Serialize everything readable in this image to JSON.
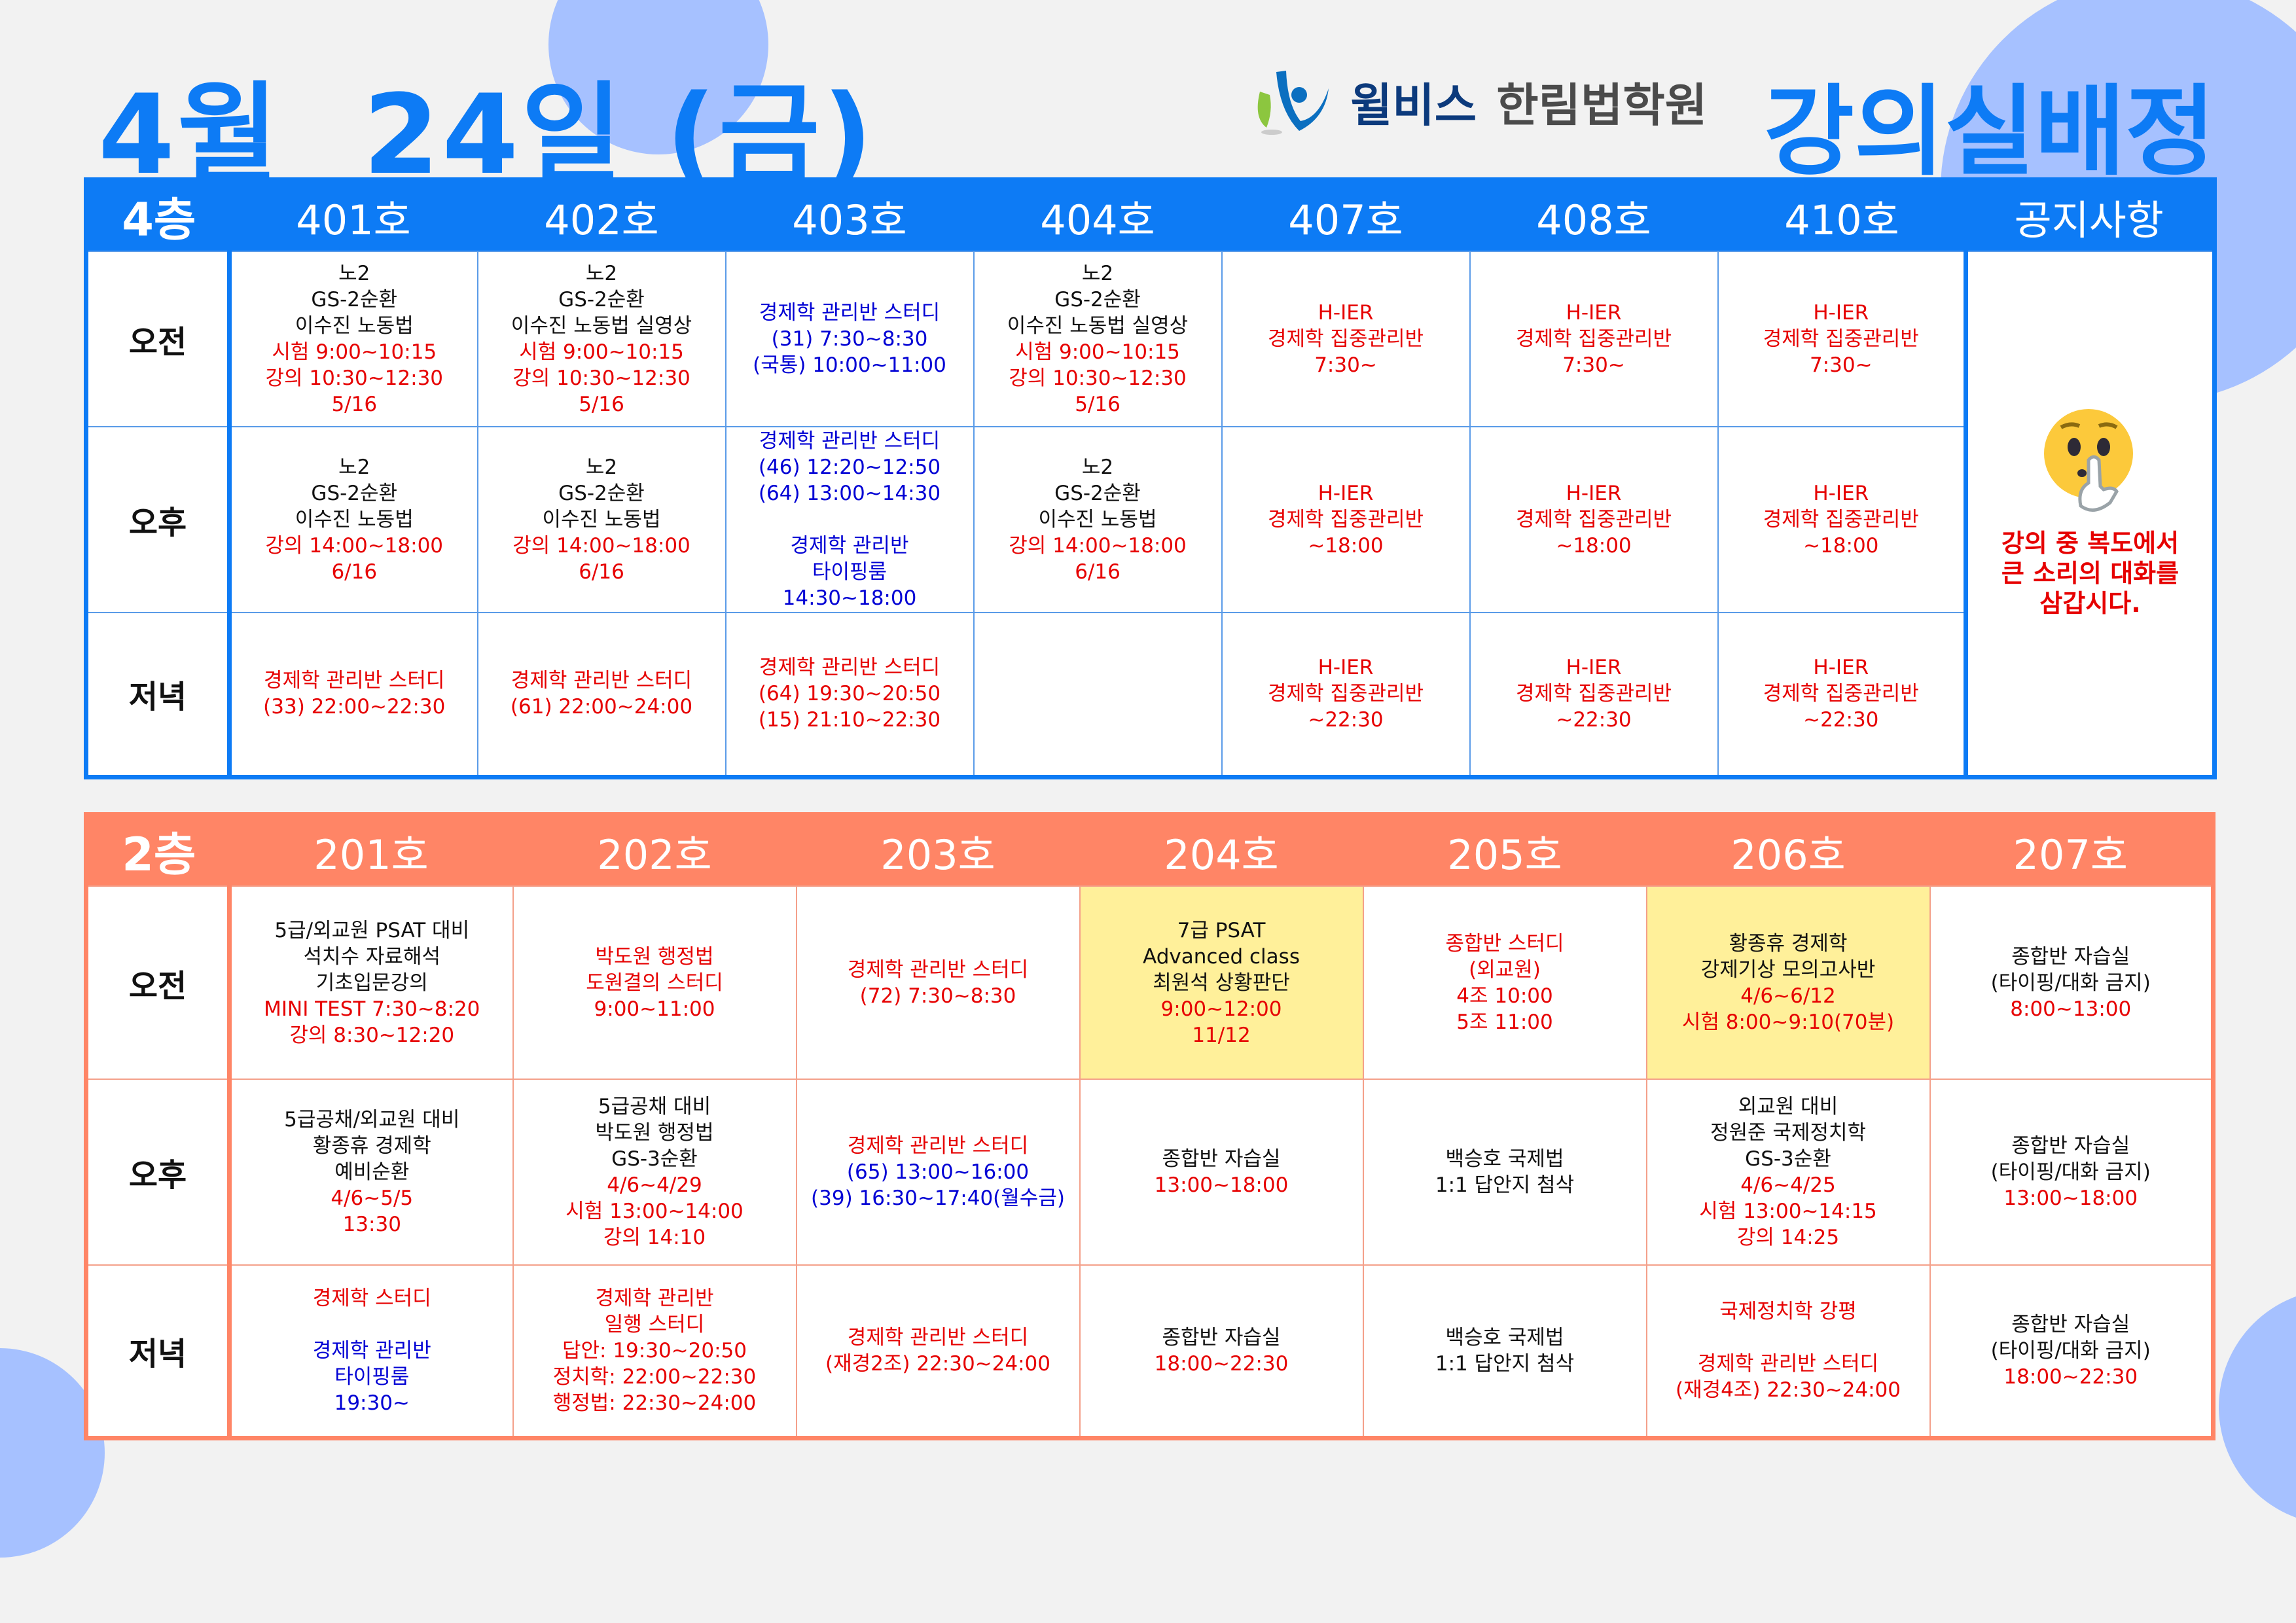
{
  "header": {
    "date_title": "4월  24일 (금)",
    "logo_brand": "윌비스",
    "logo_academy": "한림법학원",
    "page_title": "강의실배정"
  },
  "colors": {
    "primary_blue": "#0d7bf5",
    "floor2_salmon": "#ff8566",
    "highlight_yellow": "#fff09a",
    "text_red": "#e60000",
    "text_blue": "#0000d4"
  },
  "floor4": {
    "floor_label": "4층",
    "rooms": [
      "401호",
      "402호",
      "403호",
      "404호",
      "407호",
      "408호",
      "410호"
    ],
    "notice_header": "공지사항",
    "notice": {
      "icon": "shushing-face-emoji",
      "lines": [
        "강의 중 복도에서",
        "큰 소리의 대화를",
        "삼갑시다."
      ]
    },
    "rows": [
      {
        "label": "오전",
        "cells": [
          {
            "lines": [
              [
                "노2",
                "black"
              ],
              [
                "GS-2순환",
                "black"
              ],
              [
                "이수진 노동법",
                "black"
              ],
              [
                "시험 9:00~10:15",
                "red"
              ],
              [
                "강의 10:30~12:30",
                "red"
              ],
              [
                "5/16",
                "red"
              ]
            ]
          },
          {
            "lines": [
              [
                "노2",
                "black"
              ],
              [
                "GS-2순환",
                "black"
              ],
              [
                "이수진 노동법 실영상",
                "black"
              ],
              [
                "시험 9:00~10:15",
                "red"
              ],
              [
                "강의 10:30~12:30",
                "red"
              ],
              [
                "5/16",
                "red"
              ]
            ]
          },
          {
            "lines": [
              [
                "경제학 관리반 스터디",
                "blue"
              ],
              [
                "(31) 7:30~8:30",
                "blue"
              ],
              [
                "(국통) 10:00~11:00",
                "blue"
              ]
            ]
          },
          {
            "lines": [
              [
                "노2",
                "black"
              ],
              [
                "GS-2순환",
                "black"
              ],
              [
                "이수진 노동법 실영상",
                "black"
              ],
              [
                "시험 9:00~10:15",
                "red"
              ],
              [
                "강의 10:30~12:30",
                "red"
              ],
              [
                "5/16",
                "red"
              ]
            ]
          },
          {
            "lines": [
              [
                "H-IER",
                "red"
              ],
              [
                "경제학 집중관리반",
                "red"
              ],
              [
                "7:30~",
                "red"
              ]
            ]
          },
          {
            "lines": [
              [
                "H-IER",
                "red"
              ],
              [
                "경제학 집중관리반",
                "red"
              ],
              [
                "7:30~",
                "red"
              ]
            ]
          },
          {
            "lines": [
              [
                "H-IER",
                "red"
              ],
              [
                "경제학 집중관리반",
                "red"
              ],
              [
                "7:30~",
                "red"
              ]
            ]
          }
        ]
      },
      {
        "label": "오후",
        "cells": [
          {
            "lines": [
              [
                "노2",
                "black"
              ],
              [
                "GS-2순환",
                "black"
              ],
              [
                "이수진 노동법",
                "black"
              ],
              [
                "강의 14:00~18:00",
                "red"
              ],
              [
                "6/16",
                "red"
              ]
            ]
          },
          {
            "lines": [
              [
                "노2",
                "black"
              ],
              [
                "GS-2순환",
                "black"
              ],
              [
                "이수진 노동법",
                "black"
              ],
              [
                "강의 14:00~18:00",
                "red"
              ],
              [
                "6/16",
                "red"
              ]
            ]
          },
          {
            "lines": [
              [
                "경제학 관리반 스터디",
                "blue"
              ],
              [
                "(46) 12:20~12:50",
                "blue"
              ],
              [
                "(64) 13:00~14:30",
                "blue"
              ],
              [
                "",
                ""
              ],
              [
                "경제학 관리반",
                "blue"
              ],
              [
                "타이핑룸",
                "blue"
              ],
              [
                "14:30~18:00",
                "blue"
              ]
            ]
          },
          {
            "lines": [
              [
                "노2",
                "black"
              ],
              [
                "GS-2순환",
                "black"
              ],
              [
                "이수진 노동법",
                "black"
              ],
              [
                "강의 14:00~18:00",
                "red"
              ],
              [
                "6/16",
                "red"
              ]
            ]
          },
          {
            "lines": [
              [
                "H-IER",
                "red"
              ],
              [
                "경제학 집중관리반",
                "red"
              ],
              [
                "~18:00",
                "red"
              ]
            ]
          },
          {
            "lines": [
              [
                "H-IER",
                "red"
              ],
              [
                "경제학 집중관리반",
                "red"
              ],
              [
                "~18:00",
                "red"
              ]
            ]
          },
          {
            "lines": [
              [
                "H-IER",
                "red"
              ],
              [
                "경제학 집중관리반",
                "red"
              ],
              [
                "~18:00",
                "red"
              ]
            ]
          }
        ]
      },
      {
        "label": "저녁",
        "cells": [
          {
            "lines": [
              [
                "경제학 관리반 스터디",
                "red"
              ],
              [
                "(33) 22:00~22:30",
                "red"
              ]
            ]
          },
          {
            "lines": [
              [
                "경제학 관리반 스터디",
                "red"
              ],
              [
                "(61) 22:00~24:00",
                "red"
              ]
            ]
          },
          {
            "lines": [
              [
                "경제학 관리반 스터디",
                "red"
              ],
              [
                "(64) 19:30~20:50",
                "red"
              ],
              [
                "(15) 21:10~22:30",
                "red"
              ]
            ]
          },
          {
            "lines": []
          },
          {
            "lines": [
              [
                "H-IER",
                "red"
              ],
              [
                "경제학 집중관리반",
                "red"
              ],
              [
                "~22:30",
                "red"
              ]
            ]
          },
          {
            "lines": [
              [
                "H-IER",
                "red"
              ],
              [
                "경제학 집중관리반",
                "red"
              ],
              [
                "~22:30",
                "red"
              ]
            ]
          },
          {
            "lines": [
              [
                "H-IER",
                "red"
              ],
              [
                "경제학 집중관리반",
                "red"
              ],
              [
                "~22:30",
                "red"
              ]
            ]
          }
        ]
      }
    ]
  },
  "floor2": {
    "floor_label": "2층",
    "rooms": [
      "201호",
      "202호",
      "203호",
      "204호",
      "205호",
      "206호",
      "207호"
    ],
    "rows": [
      {
        "label": "오전",
        "cells": [
          {
            "lines": [
              [
                "5급/외교원 PSAT 대비",
                "black"
              ],
              [
                "석치수 자료해석",
                "black"
              ],
              [
                "기초입문강의",
                "black"
              ],
              [
                "MINI TEST 7:30~8:20",
                "red"
              ],
              [
                "강의 8:30~12:20",
                "red"
              ]
            ]
          },
          {
            "lines": [
              [
                "박도원 행정법",
                "red"
              ],
              [
                "도원결의 스터디",
                "red"
              ],
              [
                "9:00~11:00",
                "red"
              ]
            ]
          },
          {
            "lines": [
              [
                "경제학 관리반 스터디",
                "red"
              ],
              [
                "(72) 7:30~8:30",
                "red"
              ]
            ]
          },
          {
            "highlight": true,
            "lines": [
              [
                "7급 PSAT",
                "black"
              ],
              [
                "Advanced class",
                "black"
              ],
              [
                "최원석 상황판단",
                "black"
              ],
              [
                "9:00~12:00",
                "red"
              ],
              [
                "11/12",
                "red"
              ]
            ]
          },
          {
            "lines": [
              [
                "종합반 스터디",
                "red"
              ],
              [
                "(외교원)",
                "red"
              ],
              [
                "4조 10:00",
                "red"
              ],
              [
                "5조 11:00",
                "red"
              ]
            ]
          },
          {
            "highlight": true,
            "lines": [
              [
                "황종휴 경제학",
                "black"
              ],
              [
                "강제기상 모의고사반",
                "black"
              ],
              [
                "4/6~6/12",
                "red"
              ],
              [
                "시험 8:00~9:10(70분)",
                "red"
              ]
            ]
          },
          {
            "lines": [
              [
                "종합반 자습실",
                "black"
              ],
              [
                "(타이핑/대화 금지)",
                "black"
              ],
              [
                "8:00~13:00",
                "red"
              ]
            ]
          }
        ]
      },
      {
        "label": "오후",
        "cells": [
          {
            "lines": [
              [
                "5급공채/외교원 대비",
                "black"
              ],
              [
                "황종휴 경제학",
                "black"
              ],
              [
                "예비순환",
                "black"
              ],
              [
                "4/6~5/5",
                "red"
              ],
              [
                "13:30",
                "red"
              ]
            ]
          },
          {
            "lines": [
              [
                "5급공채 대비",
                "black"
              ],
              [
                "박도원 행정법",
                "black"
              ],
              [
                "GS-3순환",
                "black"
              ],
              [
                "4/6~4/29",
                "red"
              ],
              [
                "시험 13:00~14:00",
                "red"
              ],
              [
                "강의 14:10",
                "red"
              ]
            ]
          },
          {
            "lines": [
              [
                "경제학 관리반 스터디",
                "red"
              ],
              [
                "(65) 13:00~16:00",
                "blue"
              ],
              [
                "(39) 16:30~17:40(월수금)",
                "blue"
              ]
            ]
          },
          {
            "lines": [
              [
                "종합반 자습실",
                "black"
              ],
              [
                "13:00~18:00",
                "red"
              ]
            ]
          },
          {
            "lines": [
              [
                "백승호 국제법",
                "black"
              ],
              [
                "1:1 답안지 첨삭",
                "black"
              ]
            ]
          },
          {
            "lines": [
              [
                "외교원 대비",
                "black"
              ],
              [
                "정원준 국제정치학",
                "black"
              ],
              [
                "GS-3순환",
                "black"
              ],
              [
                "4/6~4/25",
                "red"
              ],
              [
                "시험 13:00~14:15",
                "red"
              ],
              [
                "강의 14:25",
                "red"
              ]
            ]
          },
          {
            "lines": [
              [
                "종합반 자습실",
                "black"
              ],
              [
                "(타이핑/대화 금지)",
                "black"
              ],
              [
                "13:00~18:00",
                "red"
              ]
            ]
          }
        ]
      },
      {
        "label": "저녁",
        "cells": [
          {
            "lines": [
              [
                "경제학 스터디",
                "red"
              ],
              [
                "",
                ""
              ],
              [
                "경제학 관리반",
                "blue"
              ],
              [
                "타이핑룸",
                "blue"
              ],
              [
                "19:30~",
                "blue"
              ]
            ]
          },
          {
            "lines": [
              [
                "경제학 관리반",
                "red"
              ],
              [
                "일행 스터디",
                "red"
              ],
              [
                "답안: 19:30~20:50",
                "red"
              ],
              [
                "정치학: 22:00~22:30",
                "red"
              ],
              [
                "행정법: 22:30~24:00",
                "red"
              ]
            ]
          },
          {
            "lines": [
              [
                "경제학 관리반 스터디",
                "red"
              ],
              [
                "(재경2조) 22:30~24:00",
                "red"
              ]
            ]
          },
          {
            "lines": [
              [
                "종합반 자습실",
                "black"
              ],
              [
                "18:00~22:30",
                "red"
              ]
            ]
          },
          {
            "lines": [
              [
                "백승호 국제법",
                "black"
              ],
              [
                "1:1 답안지 첨삭",
                "black"
              ]
            ]
          },
          {
            "lines": [
              [
                "국제정치학 강평",
                "red"
              ],
              [
                "",
                ""
              ],
              [
                "경제학 관리반 스터디",
                "red"
              ],
              [
                "(재경4조) 22:30~24:00",
                "red"
              ]
            ]
          },
          {
            "lines": [
              [
                "종합반 자습실",
                "black"
              ],
              [
                "(타이핑/대화 금지)",
                "black"
              ],
              [
                "18:00~22:30",
                "red"
              ]
            ]
          }
        ]
      }
    ]
  }
}
